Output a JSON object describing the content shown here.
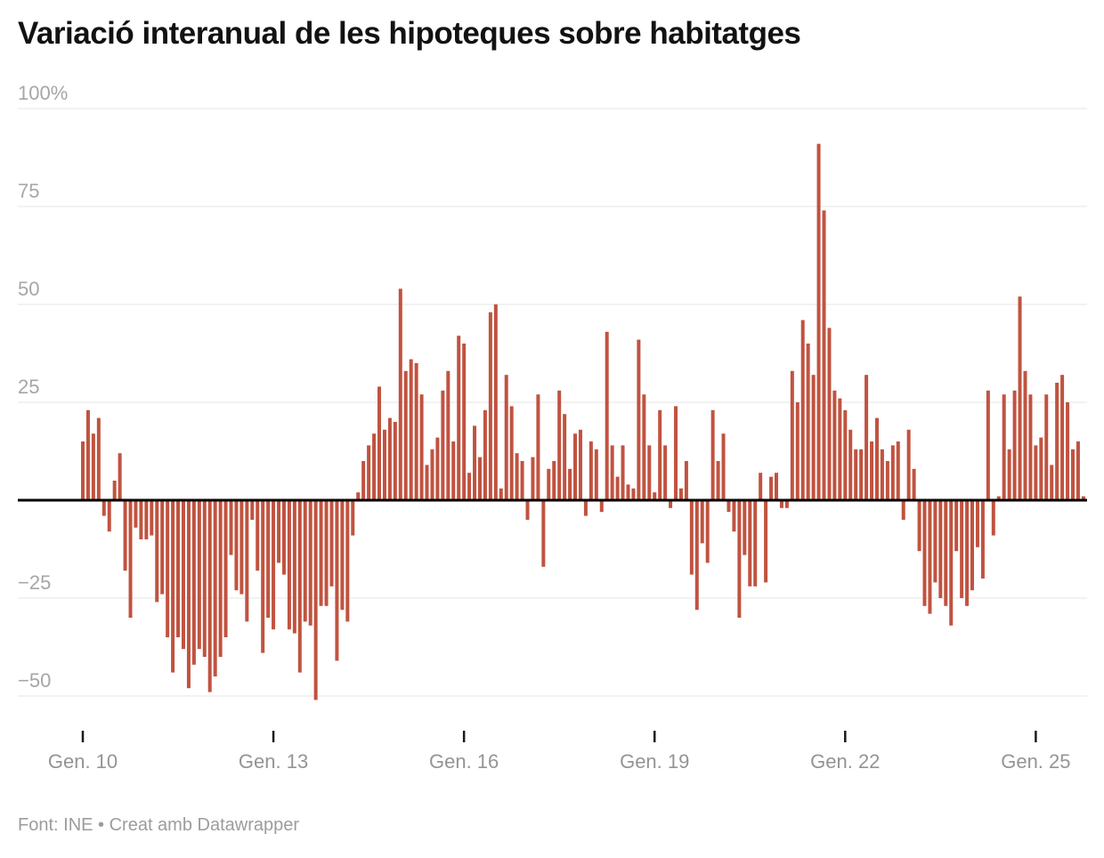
{
  "header": {
    "title": "Variació interanual de les hipoteques sobre habitatges"
  },
  "footer": {
    "text": "Font: INE • Creat amb Datawrapper"
  },
  "colors": {
    "background": "#ffffff",
    "bar": "#c05340",
    "grid": "#e4e4e4",
    "zero_line": "#000000",
    "y_label": "#a6a6a6",
    "x_label": "#949494",
    "tick_mark": "#1a1a1a",
    "title": "#121212",
    "footer_text": "#9c9c9c"
  },
  "chart_data": {
    "type": "bar",
    "title": "Variació interanual de les hipoteques sobre habitatges",
    "unit": "%",
    "frequency": "monthly",
    "start": "Gener 2010",
    "end": "Octubre 2025",
    "source": "INE",
    "ylim": [
      -55,
      100
    ],
    "grid": true,
    "y_ticks": [
      {
        "value": 100,
        "label": "100%"
      },
      {
        "value": 75,
        "label": "75"
      },
      {
        "value": 50,
        "label": "50"
      },
      {
        "value": 25,
        "label": "25"
      },
      {
        "value": -25,
        "label": "−25"
      },
      {
        "value": -50,
        "label": "−50"
      }
    ],
    "x_ticks": [
      {
        "month_index": 0,
        "label": "Gen. 10"
      },
      {
        "month_index": 36,
        "label": "Gen. 13"
      },
      {
        "month_index": 72,
        "label": "Gen. 16"
      },
      {
        "month_index": 108,
        "label": "Gen. 19"
      },
      {
        "month_index": 144,
        "label": "Gen. 22"
      },
      {
        "month_index": 180,
        "label": "Gen. 25"
      }
    ],
    "values": [
      15,
      23,
      17,
      21,
      -4,
      -8,
      5,
      12,
      -18,
      -30,
      -7,
      -10,
      -10,
      -9,
      -26,
      -24,
      -35,
      -44,
      -35,
      -38,
      -48,
      -42,
      -38,
      -40,
      -49,
      -45,
      -40,
      -35,
      -14,
      -23,
      -24,
      -31,
      -5,
      -18,
      -39,
      -30,
      -33,
      -16,
      -19,
      -33,
      -34,
      -44,
      -31,
      -32,
      -51,
      -27,
      -27,
      -22,
      -41,
      -28,
      -31,
      -9,
      2,
      10,
      14,
      17,
      29,
      18,
      21,
      20,
      54,
      33,
      36,
      35,
      27,
      9,
      13,
      16,
      28,
      33,
      15,
      42,
      40,
      7,
      19,
      11,
      23,
      48,
      50,
      3,
      32,
      24,
      12,
      10,
      -5,
      11,
      27,
      -17,
      8,
      10,
      28,
      22,
      8,
      17,
      18,
      -4,
      15,
      13,
      -3,
      43,
      14,
      6,
      14,
      4,
      3,
      41,
      27,
      14,
      2,
      23,
      14,
      -2,
      24,
      3,
      10,
      -19,
      -28,
      -11,
      -16,
      23,
      10,
      17,
      -3,
      -8,
      -30,
      -14,
      -22,
      -22,
      7,
      -21,
      6,
      7,
      -2,
      -2,
      33,
      25,
      46,
      40,
      32,
      91,
      74,
      44,
      28,
      26,
      23,
      18,
      13,
      13,
      32,
      15,
      21,
      13,
      10,
      14,
      15,
      -5,
      18,
      8,
      -13,
      -27,
      -29,
      -21,
      -25,
      -27,
      -32,
      -13,
      -25,
      -27,
      -23,
      -12,
      -20,
      28,
      -9,
      1,
      27,
      13,
      28,
      52,
      33,
      27,
      14,
      16,
      27,
      9,
      30,
      32,
      25,
      13,
      15,
      1
    ]
  }
}
